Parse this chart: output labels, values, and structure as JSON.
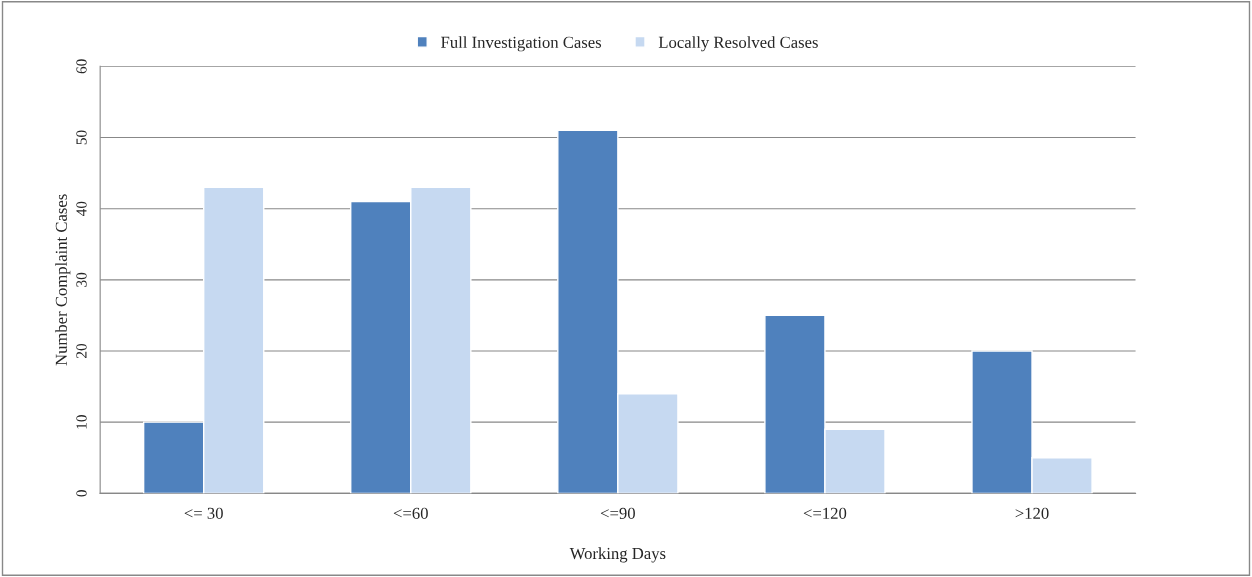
{
  "chart_data": {
    "type": "bar",
    "xlabel": "Working Days",
    "ylabel": "Number Complaint Cases",
    "categories": [
      "<= 30",
      "<=60",
      "<=90",
      "<=120",
      ">120"
    ],
    "series": [
      {
        "name": "Full Investigation Cases",
        "color": "#4f81bd",
        "values": [
          10,
          41,
          51,
          25,
          20
        ]
      },
      {
        "name": "Locally Resolved Cases",
        "color": "#c6d9f1",
        "values": [
          43,
          43,
          14,
          9,
          5
        ]
      }
    ],
    "ylim": [
      0,
      60
    ],
    "yticks": [
      0,
      10,
      20,
      30,
      40,
      50,
      60
    ],
    "grid": "y",
    "legend": "top"
  }
}
